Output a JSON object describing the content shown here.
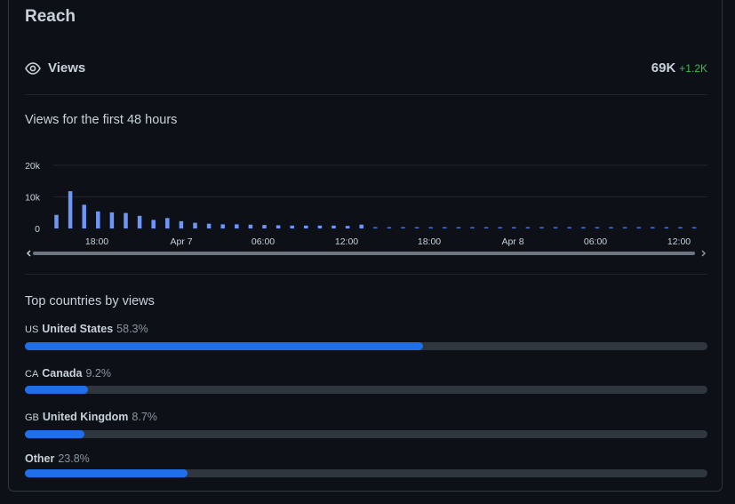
{
  "card": {
    "title": "Reach"
  },
  "views": {
    "label": "Views",
    "total": "69K",
    "delta": "+1.2K"
  },
  "chart_title": "Views for the first 48 hours",
  "chart_data": {
    "type": "bar",
    "title": "Views for the first 48 hours",
    "y_ticks": [
      "20k",
      "10k",
      "0"
    ],
    "ylim": [
      0,
      20000
    ],
    "x_tick_labels": [
      "18:00",
      "Apr 7",
      "06:00",
      "12:00",
      "18:00",
      "Apr 8",
      "06:00",
      "12:00"
    ],
    "series": [
      {
        "values": [
          4300,
          11800,
          7500,
          5400,
          5100,
          4900,
          4000,
          2700,
          3300,
          2300,
          1800,
          1500,
          1300,
          1300,
          1200,
          1100,
          1000,
          900,
          900,
          900,
          900,
          800,
          1200
        ],
        "projected_hours": 25
      }
    ],
    "grid": true,
    "colors": {
      "bar": "#6e96f7",
      "projected": "#4a6fd0",
      "grid": "#21262d"
    }
  },
  "countries_title": "Top countries by views",
  "countries": [
    {
      "code": "US",
      "name": "United States",
      "pct_label": "58.3%",
      "pct": 58.3
    },
    {
      "code": "CA",
      "name": "Canada",
      "pct_label": "9.2%",
      "pct": 9.2
    },
    {
      "code": "GB",
      "name": "United Kingdom",
      "pct_label": "8.7%",
      "pct": 8.7
    },
    {
      "code": "",
      "name": "Other",
      "pct_label": "23.8%",
      "pct": 23.8
    }
  ]
}
